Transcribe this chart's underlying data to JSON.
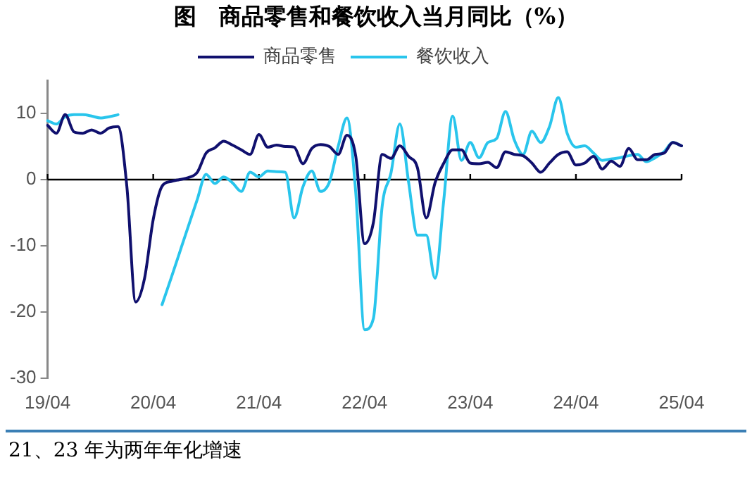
{
  "chart_data": {
    "type": "line",
    "title": "图　商品零售和餐饮收入当月同比（%）",
    "categories": [
      "19/04",
      null,
      null,
      null,
      null,
      null,
      null,
      null,
      null,
      null,
      null,
      null,
      "20/04",
      null,
      null,
      null,
      null,
      null,
      null,
      null,
      null,
      null,
      null,
      null,
      "21/04",
      null,
      null,
      null,
      null,
      null,
      null,
      null,
      null,
      null,
      null,
      null,
      "22/04",
      null,
      null,
      null,
      null,
      null,
      null,
      null,
      null,
      null,
      null,
      null,
      "23/04",
      null,
      null,
      null,
      null,
      null,
      null,
      null,
      null,
      null,
      null,
      null,
      "24/04",
      null,
      null,
      null,
      null,
      null,
      null,
      null,
      null,
      null,
      null,
      null,
      "25/04"
    ],
    "series": [
      {
        "name": "商品零售",
        "color": "#10106e",
        "values": [
          8.2,
          7,
          9.8,
          7.2,
          7,
          7.5,
          7,
          7.8,
          8,
          -1,
          -18.5,
          -15,
          -6,
          -1,
          -0.3,
          0,
          0.3,
          1.1,
          4,
          4.8,
          5.8,
          5.2,
          4.5,
          3.8,
          6.8,
          4.9,
          5.2,
          5,
          4.9,
          2.4,
          4.7,
          5.3,
          5,
          3.8,
          6.7,
          3.5,
          -9.7,
          -6.5,
          3.8,
          3.2,
          5.1,
          3.5,
          1.8,
          -5.8,
          -0.5,
          2.5,
          4.5,
          4.5,
          2.5,
          2.4,
          2.6,
          1.8,
          4.2,
          3.8,
          3.6,
          2.5,
          1.1,
          2.5,
          3.8,
          4.2,
          2.2,
          2.5,
          3.5,
          1.6,
          2.8,
          2,
          4.7,
          3,
          3,
          3.8,
          4,
          5.6,
          5.1
        ]
      },
      {
        "name": "餐饮收入",
        "color": "#29c5ec",
        "values": [
          8.9,
          8.4,
          9.5,
          9.8,
          9.8,
          9.6,
          9.3,
          9.5,
          9.8,
          null,
          null,
          null,
          null,
          -18.9,
          -15,
          -11,
          -7,
          -3,
          0.8,
          -0.6,
          0.4,
          -0.5,
          -1.8,
          1.1,
          0.4,
          1.3,
          1.2,
          1.1,
          -5.8,
          -1.1,
          1.3,
          -1.8,
          -0.4,
          5,
          9.3,
          -2,
          -22.7,
          -21,
          -4,
          1,
          8.4,
          -0.4,
          -8.4,
          -8.4,
          -14.9,
          -3,
          9.6,
          2.9,
          5.6,
          3.3,
          5.6,
          6.2,
          10.3,
          6,
          3.8,
          7.3,
          5.6,
          8,
          12.4,
          7,
          4.9,
          5.1,
          4,
          2.9,
          3.1,
          3.3,
          3.6,
          3.8,
          2.7,
          3.3,
          4.2,
          5.6,
          5.1
        ]
      }
    ],
    "ylim": [
      -30,
      15
    ],
    "yticks": [
      -30,
      -20,
      -10,
      0,
      10
    ],
    "ref_lines": [
      {
        "axis": "y",
        "value": 0,
        "color": "#000000"
      }
    ],
    "legend": "top",
    "grid": false,
    "marker": "none",
    "line_style": "solid",
    "annotations": [
      "21、23 年为两年年化增速"
    ]
  }
}
